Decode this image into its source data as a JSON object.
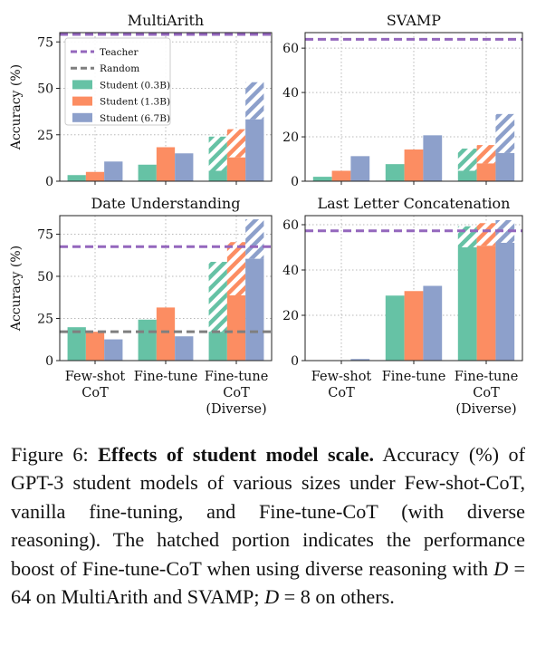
{
  "colors": {
    "teacher": "#9467bd",
    "random": "#7f7f7f",
    "student_03": "#66c2a5",
    "student_13": "#fc8d62",
    "student_67": "#8da0cb"
  },
  "legend": {
    "teacher": "Teacher",
    "random": "Random",
    "student_03": "Student (0.3B)",
    "student_13": "Student (1.3B)",
    "student_67": "Student (6.7B)"
  },
  "shared": {
    "ylabel": "Accuracy (%)",
    "x_ticks_top": [
      "Few-shot",
      "Fine-tune",
      "Fine-tune"
    ],
    "x_ticks_mid": [
      "CoT",
      "",
      "CoT"
    ],
    "x_ticks_bot": [
      "",
      "",
      "(Diverse)"
    ]
  },
  "chart_data": [
    {
      "type": "bar",
      "title": "MultiArith",
      "categories": [
        "Few-shot CoT",
        "Fine-tune",
        "Fine-tune CoT (Diverse)"
      ],
      "ylim": [
        0,
        80
      ],
      "yticks": [
        0,
        25,
        50,
        75
      ],
      "teacher": 79,
      "random": null,
      "series": [
        {
          "name": "Student (0.3B)",
          "values": [
            3.3,
            8.9,
            5.6
          ],
          "diverse": 24.0
        },
        {
          "name": "Student (1.3B)",
          "values": [
            5.0,
            18.3,
            12.8
          ],
          "diverse": 28.0
        },
        {
          "name": "Student (6.7B)",
          "values": [
            10.6,
            15.0,
            33.3
          ],
          "diverse": 53.3
        }
      ],
      "legend": true
    },
    {
      "type": "bar",
      "title": "SVAMP",
      "categories": [
        "Few-shot CoT",
        "Fine-tune",
        "Fine-tune CoT (Diverse)"
      ],
      "ylim": [
        0,
        67
      ],
      "yticks": [
        0,
        20,
        40,
        60
      ],
      "teacher": 64,
      "random": null,
      "series": [
        {
          "name": "Student (0.3B)",
          "values": [
            2.0,
            7.7,
            4.7
          ],
          "diverse": 14.7
        },
        {
          "name": "Student (1.3B)",
          "values": [
            4.7,
            14.3,
            8.0
          ],
          "diverse": 16.3
        },
        {
          "name": "Student (6.7B)",
          "values": [
            11.3,
            20.7,
            12.7
          ],
          "diverse": 30.3
        }
      ],
      "legend": false
    },
    {
      "type": "bar",
      "title": "Date Understanding",
      "categories": [
        "Few-shot CoT",
        "Fine-tune",
        "Fine-tune CoT (Diverse)"
      ],
      "ylim": [
        0,
        86
      ],
      "yticks": [
        0,
        25,
        50,
        75
      ],
      "teacher": 67.6,
      "random": 17.1,
      "series": [
        {
          "name": "Student (0.3B)",
          "values": [
            19.8,
            24.3,
            17.1
          ],
          "diverse": 58.6
        },
        {
          "name": "Student (1.3B)",
          "values": [
            17.1,
            31.5,
            38.7
          ],
          "diverse": 70.3
        },
        {
          "name": "Student (6.7B)",
          "values": [
            12.6,
            14.4,
            60.4
          ],
          "diverse": 83.8
        }
      ],
      "legend": false
    },
    {
      "type": "bar",
      "title": "Last Letter Concatenation",
      "categories": [
        "Few-shot CoT",
        "Fine-tune",
        "Fine-tune CoT (Diverse)"
      ],
      "ylim": [
        0,
        64
      ],
      "yticks": [
        0,
        20,
        40,
        60
      ],
      "teacher": 57.3,
      "random": null,
      "series": [
        {
          "name": "Student (0.3B)",
          "values": [
            0.0,
            28.7,
            50.0
          ],
          "diverse": 59.3
        },
        {
          "name": "Student (1.3B)",
          "values": [
            0.0,
            30.7,
            50.7
          ],
          "diverse": 60.7
        },
        {
          "name": "Student (6.7B)",
          "values": [
            0.7,
            33.0,
            52.0
          ],
          "diverse": 62.0
        }
      ],
      "legend": false
    }
  ],
  "caption": {
    "figure_label": "Figure 6:",
    "bold": "Effects of student model scale.",
    "text1": "Accuracy (%) of GPT-3 student models of various sizes under Few-shot-CoT, vanilla fine-tuning, and Fine-tune-CoT (with diverse reasoning). The hatched portion indicates the performance boost of Fine-tune-CoT when using diverse reasoning with",
    "d_symbol": "D",
    "eq1": " = 64 on MultiArith and SVAMP; ",
    "eq2": " = 8 on others."
  }
}
